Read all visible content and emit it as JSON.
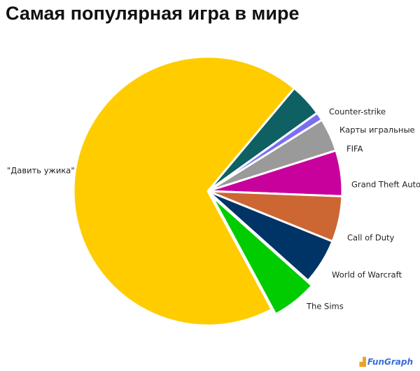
{
  "title": "Самая популярная игра в мире",
  "watermark": "FunGraph",
  "chart_data": {
    "type": "pie",
    "title": "Самая популярная игра в мире",
    "legend": "none",
    "slices": [
      {
        "label": "Counter-strike",
        "value": 4.0,
        "color": "#0f6062"
      },
      {
        "label": "Карты игральные",
        "value": 1.0,
        "color": "#7a6ff0"
      },
      {
        "label": "FIFA",
        "value": 4.0,
        "color": "#9a9a9a"
      },
      {
        "label": "Grand Theft Auto",
        "value": 5.5,
        "color": "#c8009c"
      },
      {
        "label": "Call of Duty",
        "value": 5.5,
        "color": "#cc6633"
      },
      {
        "label": "World of Warcraft",
        "value": 5.5,
        "color": "#003366"
      },
      {
        "label": "The Sims",
        "value": 5.5,
        "color": "#00cc00"
      },
      {
        "label": "\"Давить ужика\"",
        "value": 69.0,
        "color": "#ffcc00"
      }
    ]
  }
}
